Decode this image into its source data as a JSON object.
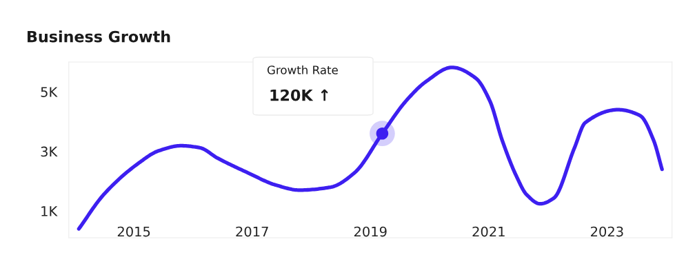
{
  "chart_data": {
    "type": "line",
    "title": "Business Growth",
    "x": [
      2014.07,
      2014.49,
      2015.07,
      2015.42,
      2015.8,
      2016.12,
      2016.41,
      2016.93,
      2017.4,
      2017.8,
      2018.33,
      2018.73,
      2019.2,
      2019.6,
      2019.95,
      2020.38,
      2020.78,
      2021.02,
      2021.23,
      2021.47,
      2021.64,
      2021.87,
      2022.1,
      2022.45,
      2022.63,
      2023.19,
      2023.56,
      2023.79,
      2023.93
    ],
    "series": [
      {
        "color": "#3d1ff0",
        "values": [
          0.4,
          1.55,
          2.59,
          3.02,
          3.19,
          3.12,
          2.78,
          2.28,
          1.87,
          1.7,
          1.8,
          2.28,
          3.6,
          4.69,
          5.36,
          5.82,
          5.46,
          4.69,
          3.36,
          2.16,
          1.55,
          1.24,
          1.43,
          3.12,
          3.96,
          4.4,
          4.2,
          3.36,
          2.4
        ]
      },
      {
        "type": "scatter",
        "color": "#3d1ff0",
        "x": [
          2019.2
        ],
        "values": [
          3.6
        ],
        "marker": "circle"
      }
    ],
    "annotations": [
      "Growth Rate",
      "120K ↑"
    ],
    "xlim": [
      2013.9,
      2024.1
    ],
    "ylim": [
      0.1,
      6.0
    ],
    "xticks": [
      2015,
      2017,
      2019,
      2021,
      2023
    ],
    "yticks": [
      {
        "value": 1,
        "label": "1K"
      },
      {
        "value": 3,
        "label": "3K"
      },
      {
        "value": 5,
        "label": "5K"
      }
    ],
    "grid": false,
    "legend": false,
    "marker": "none",
    "line_style": "solid"
  }
}
